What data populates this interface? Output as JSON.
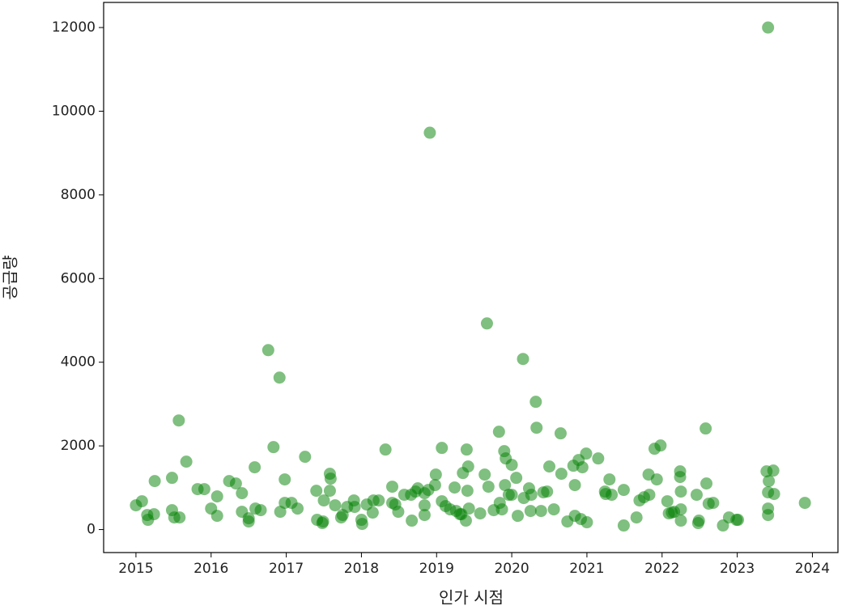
{
  "chart_data": {
    "type": "scatter",
    "x_label": "인가 시점",
    "y_label": "공급량",
    "color": "green",
    "opacity": 0.5,
    "xlim": [
      2014.57,
      2024.34
    ],
    "ylim": [
      -550,
      12600
    ],
    "xticks": [
      2015,
      2016,
      2017,
      2018,
      2019,
      2020,
      2021,
      2022,
      2023,
      2024
    ],
    "yticks": [
      0,
      2000,
      4000,
      6000,
      8000,
      10000,
      12000
    ],
    "x": [
      2015.0,
      2015.08,
      2015.16,
      2015.15,
      2015.24,
      2015.25,
      2015.48,
      2015.48,
      2015.51,
      2015.57,
      2015.58,
      2015.67,
      2015.82,
      2015.91,
      2016.0,
      2016.08,
      2016.08,
      2016.24,
      2016.33,
      2016.41,
      2016.41,
      2016.5,
      2016.5,
      2016.58,
      2016.59,
      2016.66,
      2016.76,
      2016.83,
      2016.91,
      2016.92,
      2016.98,
      2016.98,
      2017.07,
      2017.15,
      2017.25,
      2017.4,
      2017.41,
      2017.48,
      2017.49,
      2017.5,
      2017.58,
      2017.58,
      2017.59,
      2017.65,
      2017.73,
      2017.75,
      2017.81,
      2017.9,
      2017.91,
      2018.0,
      2018.01,
      2018.07,
      2018.15,
      2018.16,
      2018.23,
      2018.32,
      2018.41,
      2018.41,
      2018.45,
      2018.49,
      2018.57,
      2018.66,
      2018.67,
      2018.72,
      2018.75,
      2018.84,
      2018.84,
      2018.84,
      2018.89,
      2018.91,
      2018.98,
      2018.99,
      2019.07,
      2019.07,
      2019.12,
      2019.18,
      2019.24,
      2019.26,
      2019.31,
      2019.33,
      2019.35,
      2019.39,
      2019.4,
      2019.41,
      2019.42,
      2019.43,
      2019.58,
      2019.64,
      2019.67,
      2019.69,
      2019.76,
      2019.83,
      2019.84,
      2019.87,
      2019.9,
      2019.91,
      2019.92,
      2019.96,
      2020.0,
      2020.0,
      2020.06,
      2020.08,
      2020.15,
      2020.16,
      2020.23,
      2020.25,
      2020.26,
      2020.32,
      2020.33,
      2020.39,
      2020.42,
      2020.47,
      2020.5,
      2020.56,
      2020.65,
      2020.66,
      2020.74,
      2020.82,
      2020.84,
      2020.84,
      2020.89,
      2020.92,
      2020.94,
      2020.99,
      2021.0,
      2021.15,
      2021.24,
      2021.25,
      2021.3,
      2021.33,
      2021.49,
      2021.49,
      2021.66,
      2021.7,
      2021.76,
      2021.82,
      2021.83,
      2021.9,
      2021.93,
      2021.98,
      2022.07,
      2022.09,
      2022.13,
      2022.16,
      2022.24,
      2022.24,
      2022.25,
      2022.25,
      2022.25,
      2022.46,
      2022.48,
      2022.49,
      2022.58,
      2022.59,
      2022.62,
      2022.68,
      2022.81,
      2022.89,
      2022.99,
      2023.01,
      2023.41,
      2023.39,
      2023.42,
      2023.41,
      2023.41,
      2023.41,
      2023.48,
      2023.49,
      2023.9
    ],
    "values": [
      580,
      676,
      232,
      348,
      367,
      1159,
      1236,
      464,
      290,
      2608,
      290,
      1623,
      966,
      966,
      502,
      792,
      328,
      1159,
      1101,
      869,
      425,
      270,
      193,
      1488,
      502,
      464,
      4289,
      1971,
      3632,
      425,
      1198,
      638,
      638,
      502,
      1739,
      927,
      232,
      155,
      193,
      696,
      1333,
      927,
      1217,
      580,
      290,
      348,
      541,
      696,
      541,
      232,
      135,
      599,
      406,
      696,
      696,
      1913,
      1024,
      638,
      599,
      425,
      831,
      831,
      213,
      908,
      985,
      580,
      869,
      348,
      947,
      9486,
      1063,
      1314,
      1951,
      676,
      560,
      483,
      1005,
      444,
      367,
      367,
      1352,
      213,
      1913,
      927,
      1507,
      502,
      386,
      1314,
      4927,
      1024,
      464,
      2338,
      638,
      483,
      1874,
      1063,
      1700,
      831,
      1546,
      831,
      1236,
      328,
      4077,
      753,
      985,
      444,
      831,
      3053,
      2434,
      444,
      889,
      908,
      1507,
      483,
      2299,
      1333,
      193,
      1526,
      1063,
      328,
      1662,
      251,
      1488,
      1816,
      174,
      1700,
      908,
      850,
      1198,
      831,
      97,
      947,
      290,
      696,
      773,
      1314,
      831,
      1932,
      1198,
      2009,
      676,
      386,
      406,
      425,
      1391,
      1256,
      213,
      908,
      483,
      831,
      155,
      213,
      2415,
      1101,
      618,
      638,
      97,
      290,
      232,
      232,
      12000,
      1391,
      1159,
      889,
      502,
      348,
      1410,
      850,
      638
    ]
  }
}
